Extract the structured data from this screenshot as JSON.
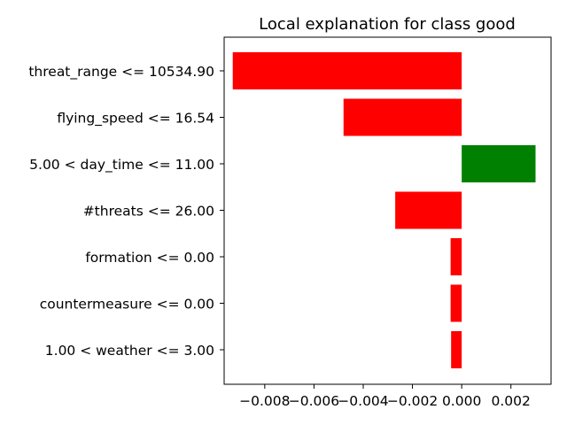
{
  "chart_data": {
    "type": "bar",
    "orientation": "horizontal",
    "title": "Local explanation for class good",
    "xlabel": "",
    "ylabel": "",
    "categories": [
      "threat_range <= 10534.90",
      "flying_speed <= 16.54",
      "5.00 < day_time <= 11.00",
      "#threats <= 26.00",
      "formation <= 0.00",
      "countermeasure <= 0.00",
      "1.00 < weather <= 3.00"
    ],
    "values": [
      -0.0093,
      -0.0048,
      0.003,
      -0.0027,
      -0.00045,
      -0.00045,
      -0.00043
    ],
    "bar_colors": [
      "#ff0000",
      "#ff0000",
      "#008000",
      "#ff0000",
      "#ff0000",
      "#ff0000",
      "#ff0000"
    ],
    "xlim": [
      -0.00965,
      0.00363
    ],
    "xticks": [
      -0.008,
      -0.006,
      -0.004,
      -0.002,
      0.0,
      0.002
    ],
    "xtick_labels": [
      "−0.008",
      "−0.006",
      "−0.004",
      "−0.002",
      "0.000",
      "0.002"
    ],
    "grid": false,
    "legend": "none"
  }
}
